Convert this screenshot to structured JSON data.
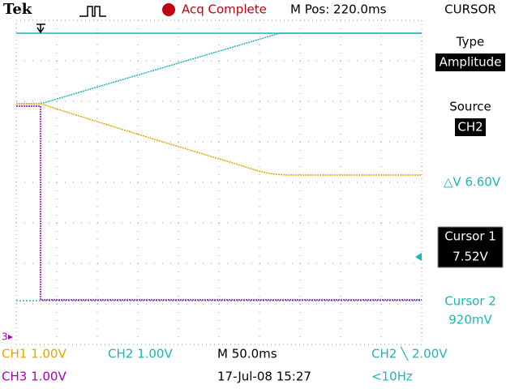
{
  "header": {
    "brand": "Tek",
    "status": "Acq Complete",
    "position": "M Pos: 220.0ms",
    "menu_title": "CURSOR"
  },
  "menu": [
    {
      "label": "Type",
      "value": "Amplitude"
    },
    {
      "label": "Source",
      "value": "CH2"
    },
    {
      "label": "△V 6.60V"
    },
    {
      "label": "Cursor 1",
      "value": "7.52V"
    },
    {
      "label": "Cursor 2",
      "value": "920mV"
    }
  ],
  "markers": {
    "ch3": "3"
  },
  "footer": {
    "ch1": "CH1  1.00V",
    "ch2": "CH2  1.00V",
    "timebase": "M 50.0ms",
    "trigger": "CH2 ╲ 2.00V",
    "ch3": "CH3  1.00V",
    "date": "17-Jul-08 15:27",
    "frequency": "<10Hz"
  }
}
